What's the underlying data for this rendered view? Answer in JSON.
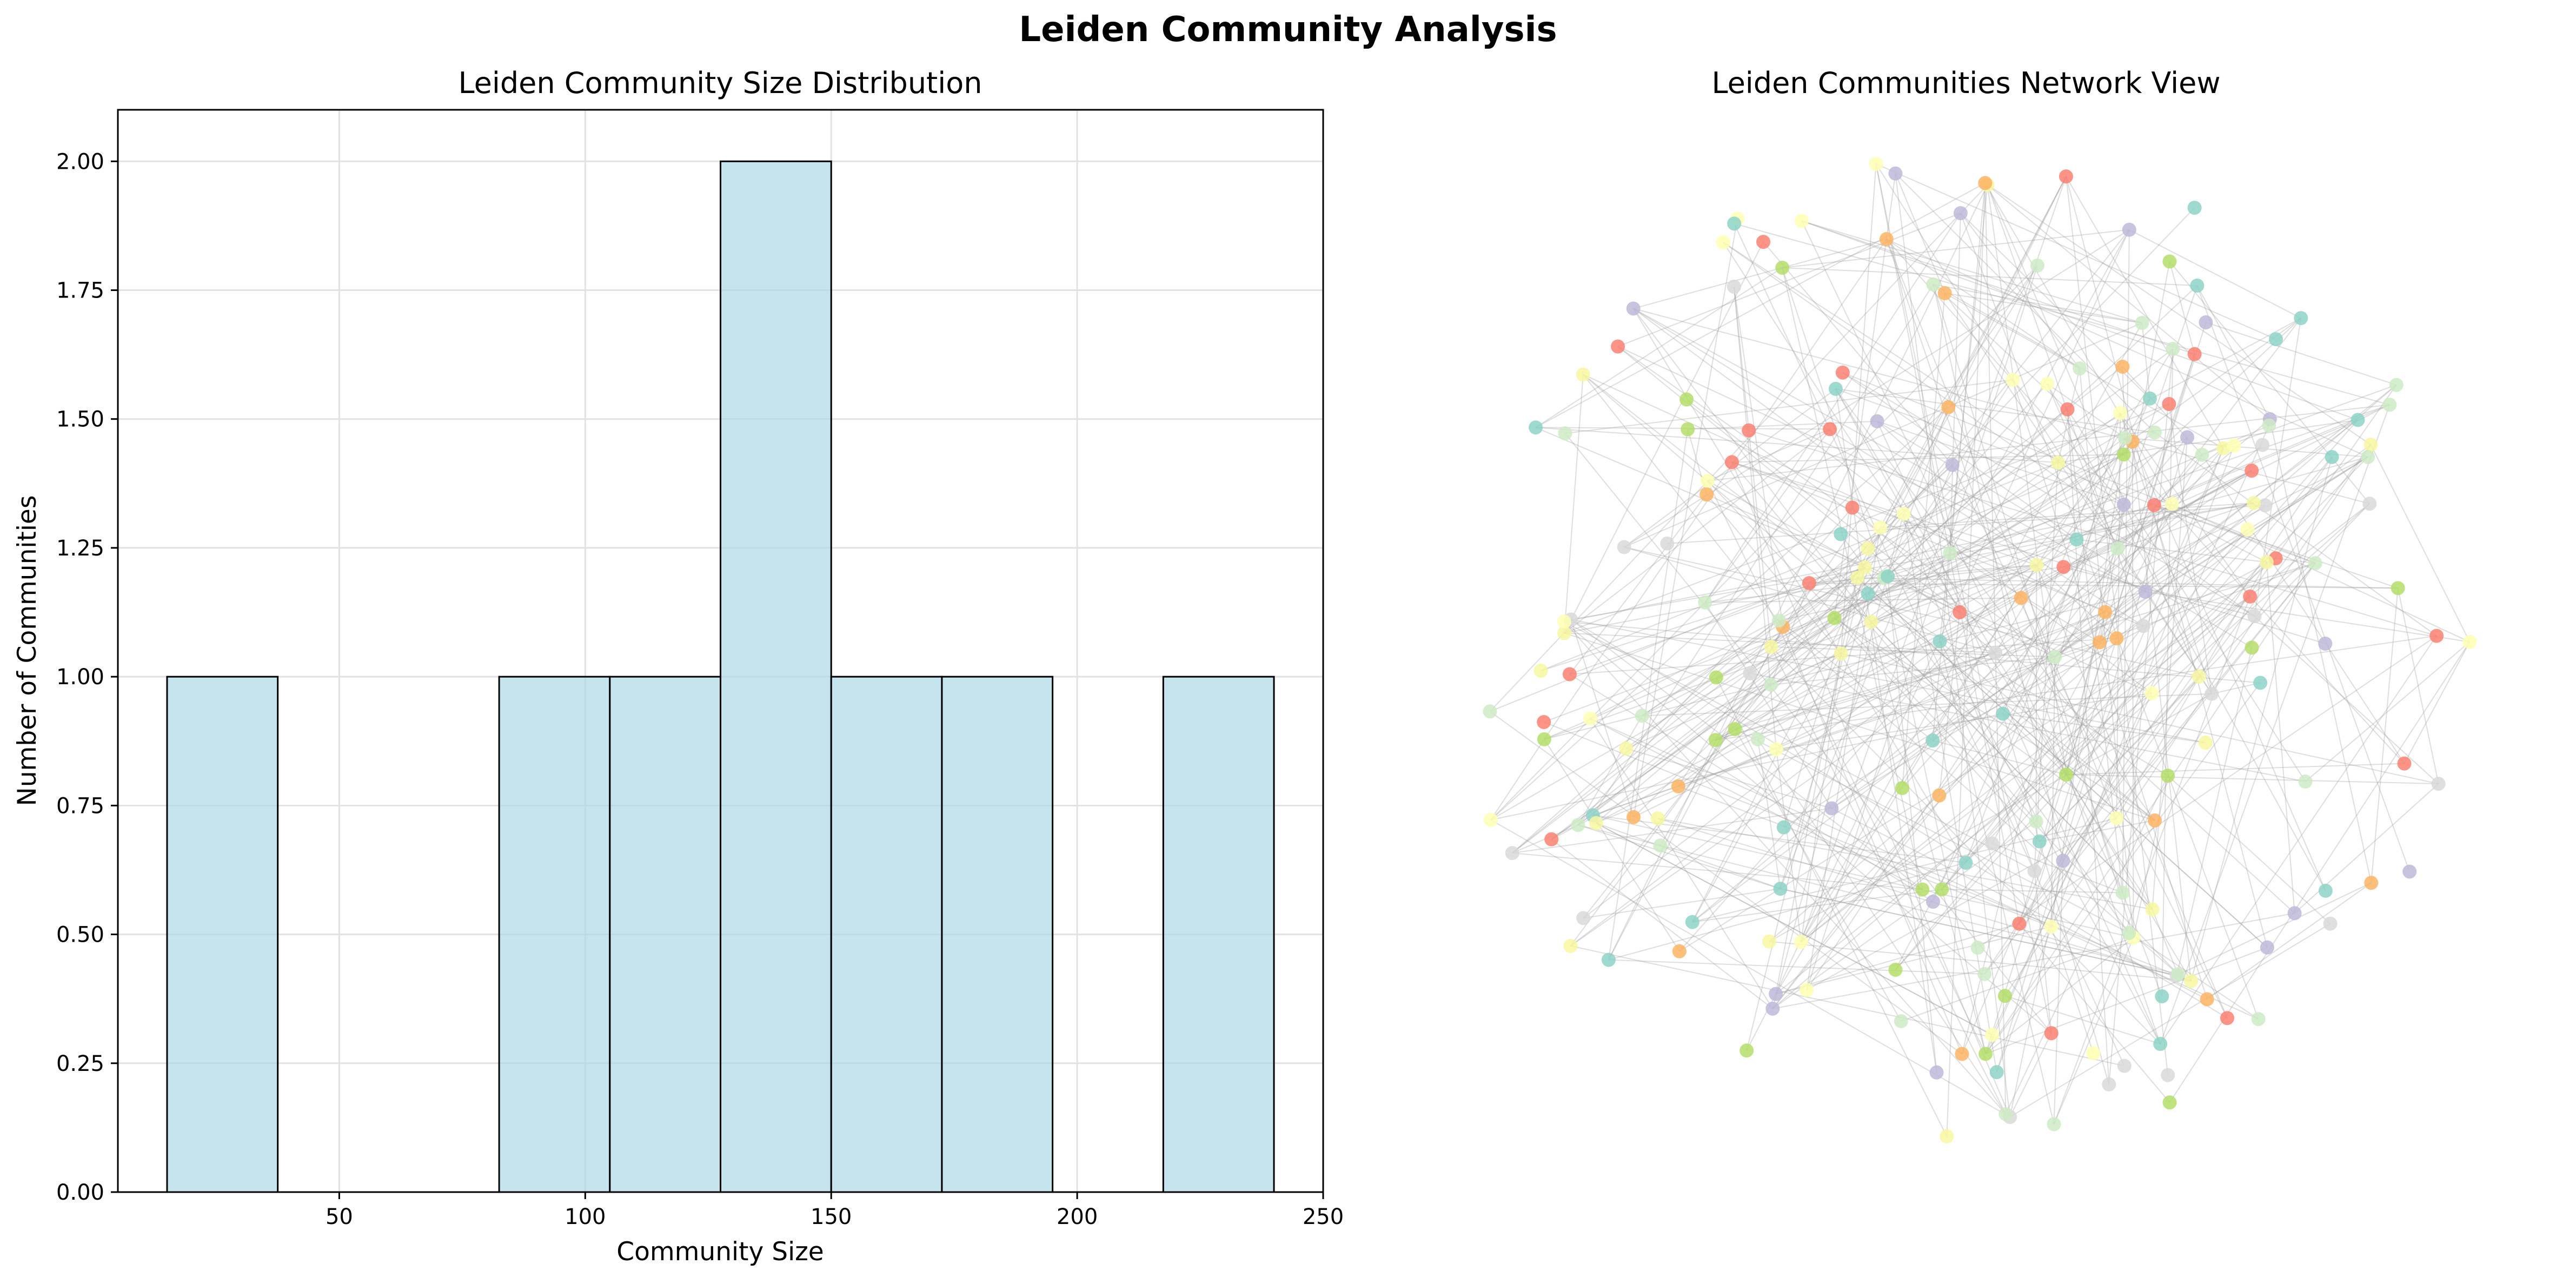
{
  "figure": {
    "title": "Leiden Community Analysis"
  },
  "colors": {
    "bar_fill": "#add8e6",
    "bar_edge": "#000000",
    "edge_line": "#a0a0a0",
    "grid": "#e2e2e2",
    "node_palette": [
      "#8dd3c7",
      "#ffffb3",
      "#bebada",
      "#fb8072",
      "#fdb462",
      "#b3de69",
      "#d9d9d9",
      "#ccebc5",
      "#f7f7a0"
    ]
  },
  "chart_data": [
    {
      "type": "bar",
      "title": "Leiden Community Size Distribution",
      "xlabel": "Community Size",
      "ylabel": "Number of Communities",
      "grid": true,
      "bin_edges": [
        15,
        37.5,
        60,
        82.5,
        105,
        127.5,
        150,
        172.5,
        195,
        217.5,
        240
      ],
      "values": [
        1,
        0,
        0,
        1,
        1,
        2,
        1,
        1,
        0,
        1
      ],
      "xlim": [
        5,
        250
      ],
      "ylim": [
        0,
        2.1
      ],
      "xticks": [
        50,
        100,
        150,
        200,
        250
      ],
      "yticks": [
        "0.00",
        "0.25",
        "0.50",
        "0.75",
        "1.00",
        "1.25",
        "1.50",
        "1.75",
        "2.00"
      ]
    },
    {
      "type": "scatter",
      "title": "Leiden Communities Network View",
      "axes": false,
      "node_count": 230,
      "edge_count": 500,
      "communities": 8
    }
  ]
}
